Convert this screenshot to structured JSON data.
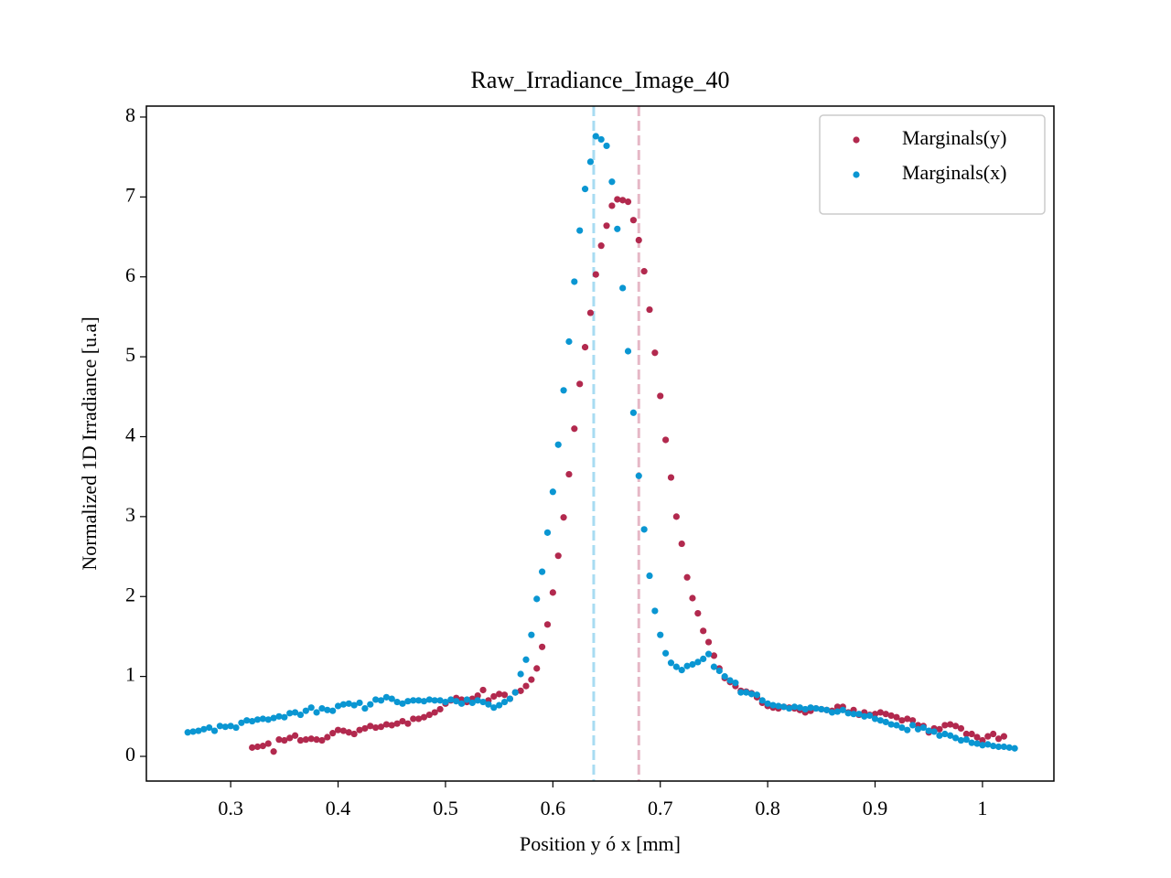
{
  "chart_data": {
    "type": "scatter",
    "title": "Raw_Irradiance_Image_40",
    "x_label": "Position y ó x [mm]",
    "y_label": "Normalized 1D Irradiance [u.a]",
    "xlim": [
      0.2215,
      1.0665
    ],
    "ylim": [
      -0.309,
      8.137
    ],
    "xticks": [
      0.3,
      0.4,
      0.5,
      0.6,
      0.7,
      0.8,
      0.9,
      1.0
    ],
    "yticks": [
      0,
      1,
      2,
      3,
      4,
      5,
      6,
      7,
      8
    ],
    "legend": "upper right",
    "x": [
      0.26,
      0.265,
      0.27,
      0.275,
      0.28,
      0.285,
      0.29,
      0.295,
      0.3,
      0.305,
      0.31,
      0.315,
      0.32,
      0.325,
      0.33,
      0.335,
      0.34,
      0.345,
      0.35,
      0.355,
      0.36,
      0.365,
      0.37,
      0.375,
      0.38,
      0.385,
      0.39,
      0.395,
      0.4,
      0.405,
      0.41,
      0.415,
      0.42,
      0.425,
      0.43,
      0.435,
      0.44,
      0.445,
      0.45,
      0.455,
      0.46,
      0.465,
      0.47,
      0.475,
      0.48,
      0.485,
      0.49,
      0.495,
      0.5,
      0.505,
      0.51,
      0.515,
      0.52,
      0.525,
      0.53,
      0.535,
      0.54,
      0.545,
      0.55,
      0.555,
      0.56,
      0.565,
      0.57,
      0.575,
      0.58,
      0.585,
      0.59,
      0.595,
      0.6,
      0.605,
      0.61,
      0.615,
      0.62,
      0.625,
      0.63,
      0.635,
      0.64,
      0.645,
      0.65,
      0.655,
      0.66,
      0.665,
      0.67,
      0.675,
      0.68,
      0.685,
      0.69,
      0.695,
      0.7,
      0.705,
      0.71,
      0.715,
      0.72,
      0.725,
      0.73,
      0.735,
      0.74,
      0.745,
      0.75,
      0.755,
      0.76,
      0.765,
      0.77,
      0.775,
      0.78,
      0.785,
      0.79,
      0.795,
      0.8,
      0.805,
      0.81,
      0.815,
      0.82,
      0.825,
      0.83,
      0.835,
      0.84,
      0.845,
      0.85,
      0.855,
      0.86,
      0.865,
      0.87,
      0.875,
      0.88,
      0.885,
      0.89,
      0.895,
      0.9,
      0.905,
      0.91,
      0.915,
      0.92,
      0.925,
      0.93,
      0.935,
      0.94,
      0.945,
      0.95,
      0.955,
      0.96,
      0.965,
      0.97,
      0.975,
      0.98,
      0.985,
      0.99,
      0.995,
      1.0,
      1.005,
      1.01,
      1.015,
      1.02,
      1.025,
      1.03
    ],
    "series": [
      {
        "name": "Marginals(y)",
        "color": "#b2294e",
        "values": [
          null,
          null,
          null,
          null,
          null,
          null,
          null,
          null,
          null,
          null,
          null,
          null,
          0.11,
          0.12,
          0.13,
          0.16,
          0.06,
          0.21,
          0.2,
          0.23,
          0.26,
          0.2,
          0.21,
          0.22,
          0.21,
          0.2,
          0.24,
          0.29,
          0.33,
          0.32,
          0.3,
          0.28,
          0.33,
          0.35,
          0.38,
          0.36,
          0.37,
          0.4,
          0.39,
          0.41,
          0.44,
          0.41,
          0.47,
          0.47,
          0.49,
          0.52,
          0.55,
          0.59,
          0.66,
          0.7,
          0.73,
          0.71,
          0.68,
          0.72,
          0.76,
          0.83,
          0.7,
          0.75,
          0.78,
          0.77,
          0.72,
          0.8,
          0.82,
          0.88,
          0.96,
          1.1,
          1.37,
          1.65,
          2.05,
          2.51,
          2.99,
          3.53,
          4.1,
          4.66,
          5.12,
          5.55,
          6.03,
          6.39,
          6.64,
          6.89,
          6.97,
          6.96,
          6.94,
          6.71,
          6.46,
          6.07,
          5.59,
          5.05,
          4.51,
          3.96,
          3.49,
          3.0,
          2.66,
          2.24,
          1.98,
          1.79,
          1.57,
          1.43,
          1.26,
          1.1,
          0.98,
          0.93,
          0.88,
          0.82,
          0.81,
          0.79,
          0.74,
          0.67,
          0.63,
          0.61,
          0.6,
          0.62,
          0.61,
          0.6,
          0.58,
          0.55,
          0.57,
          0.6,
          0.59,
          0.58,
          0.57,
          0.62,
          0.62,
          0.55,
          0.58,
          0.52,
          0.55,
          0.52,
          0.53,
          0.55,
          0.53,
          0.51,
          0.49,
          0.45,
          0.47,
          0.45,
          0.39,
          0.38,
          0.3,
          0.35,
          0.34,
          0.39,
          0.4,
          0.38,
          0.35,
          0.28,
          0.28,
          0.24,
          0.2,
          0.25,
          0.28,
          0.22,
          0.25,
          null,
          null
        ]
      },
      {
        "name": "Marginals(x)",
        "color": "#0a96d2",
        "values": [
          0.3,
          0.31,
          0.32,
          0.34,
          0.36,
          0.32,
          0.38,
          0.37,
          0.38,
          0.36,
          0.42,
          0.45,
          0.44,
          0.46,
          0.47,
          0.46,
          0.48,
          0.5,
          0.49,
          0.54,
          0.55,
          0.52,
          0.57,
          0.61,
          0.55,
          0.6,
          0.58,
          0.57,
          0.63,
          0.65,
          0.66,
          0.64,
          0.67,
          0.6,
          0.65,
          0.71,
          0.7,
          0.74,
          0.72,
          0.68,
          0.66,
          0.69,
          0.7,
          0.7,
          0.69,
          0.71,
          0.7,
          0.7,
          0.68,
          0.71,
          0.69,
          0.66,
          0.71,
          0.67,
          0.7,
          0.68,
          0.65,
          0.61,
          0.64,
          0.68,
          0.72,
          0.8,
          1.03,
          1.21,
          1.52,
          1.97,
          2.31,
          2.8,
          3.31,
          3.9,
          4.58,
          5.19,
          5.94,
          6.58,
          7.1,
          7.44,
          7.76,
          7.72,
          7.64,
          7.19,
          6.6,
          5.86,
          5.07,
          4.3,
          3.51,
          2.84,
          2.26,
          1.82,
          1.52,
          1.29,
          1.17,
          1.12,
          1.08,
          1.13,
          1.15,
          1.18,
          1.22,
          1.28,
          1.12,
          1.07,
          1.0,
          0.95,
          0.92,
          0.8,
          0.8,
          0.78,
          0.77,
          0.7,
          0.66,
          0.64,
          0.63,
          0.62,
          0.6,
          0.62,
          0.61,
          0.59,
          0.61,
          0.6,
          0.59,
          0.58,
          0.55,
          0.56,
          0.58,
          0.54,
          0.53,
          0.53,
          0.5,
          0.51,
          0.47,
          0.45,
          0.43,
          0.4,
          0.39,
          0.36,
          0.33,
          0.39,
          0.34,
          0.36,
          0.32,
          0.31,
          0.26,
          0.28,
          0.26,
          0.23,
          0.2,
          0.21,
          0.17,
          0.16,
          0.14,
          0.15,
          0.13,
          0.12,
          0.12,
          0.11,
          0.1
        ]
      }
    ],
    "vlines": [
      {
        "x": 0.638,
        "color": "#a8dcf2"
      },
      {
        "x": 0.68,
        "color": "#e6b8c6"
      }
    ]
  }
}
